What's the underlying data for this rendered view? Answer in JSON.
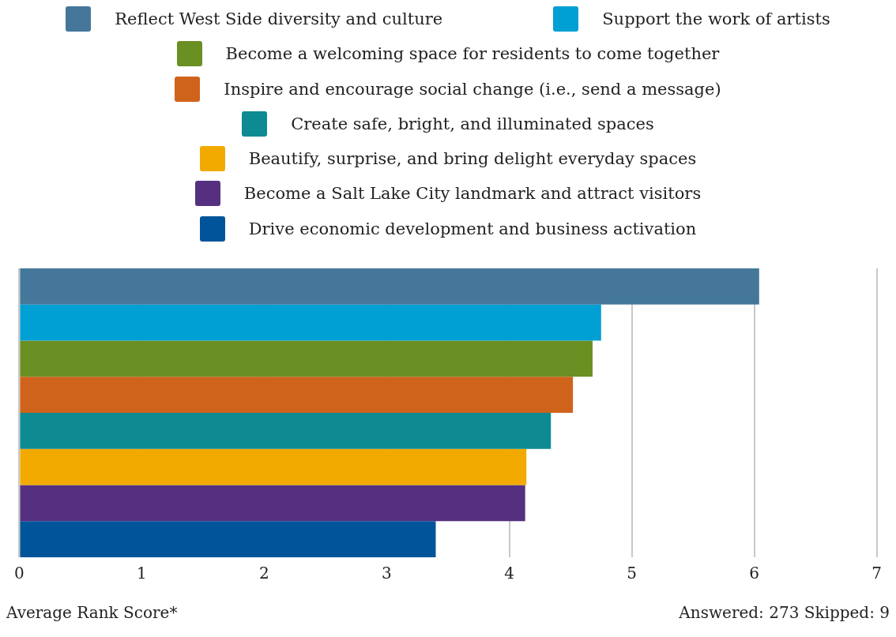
{
  "chart_data": {
    "type": "bar",
    "orientation": "horizontal",
    "categories": [
      null
    ],
    "series": [
      {
        "name": "Reflect West Side diversity and culture",
        "color": "#44779a",
        "values": [
          6.04
        ]
      },
      {
        "name": "Support the work of artists",
        "color": "#009fd4",
        "values": [
          4.75
        ]
      },
      {
        "name": "Become a welcoming space for residents to come together",
        "color": "#6a8f22",
        "values": [
          4.68
        ]
      },
      {
        "name": "Inspire and encourage social change (i.e., send a message)",
        "color": "#cf631c",
        "values": [
          4.52
        ]
      },
      {
        "name": "Create safe, bright, and illuminated spaces",
        "color": "#0e8a92",
        "values": [
          4.34
        ]
      },
      {
        "name": "Beautify, surprise, and bring delight everyday spaces",
        "color": "#f2aa00",
        "values": [
          4.14
        ]
      },
      {
        "name": "Become a Salt Lake City landmark and attract visitors",
        "color": "#563080",
        "values": [
          4.13
        ]
      },
      {
        "name": "Drive economic development and business activation",
        "color": "#00559a",
        "values": [
          3.4
        ]
      }
    ],
    "xlim": [
      0,
      7
    ],
    "xticks": [
      0,
      1,
      2,
      3,
      4,
      5,
      6,
      7
    ],
    "xlabel": "Average Rank Score*",
    "annotations": [
      "Answered: 273 Skipped: 9"
    ],
    "grid": "x",
    "legend": "top",
    "tick_labels": "x"
  }
}
